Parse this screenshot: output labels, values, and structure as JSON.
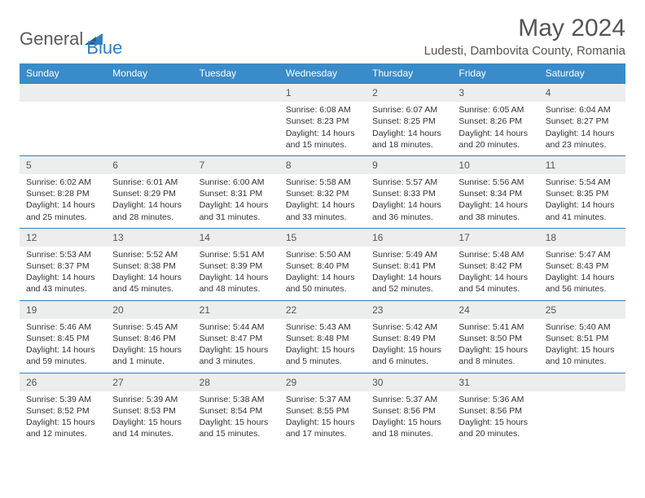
{
  "logo": {
    "word1": "General",
    "word2": "Blue"
  },
  "title": "May 2024",
  "location": "Ludesti, Dambovita County, Romania",
  "colors": {
    "header_bg": "#3a8bc9",
    "header_text": "#ffffff",
    "daynum_bg": "#eceded",
    "daynum_border": "#2f7fc2",
    "text": "#333333",
    "logo_gray": "#5a5a5a",
    "logo_blue": "#2f7fc2"
  },
  "day_headers": [
    "Sunday",
    "Monday",
    "Tuesday",
    "Wednesday",
    "Thursday",
    "Friday",
    "Saturday"
  ],
  "weeks": [
    [
      {
        "n": "",
        "sr": "",
        "ss": "",
        "dl": ""
      },
      {
        "n": "",
        "sr": "",
        "ss": "",
        "dl": ""
      },
      {
        "n": "",
        "sr": "",
        "ss": "",
        "dl": ""
      },
      {
        "n": "1",
        "sr": "Sunrise: 6:08 AM",
        "ss": "Sunset: 8:23 PM",
        "dl": "Daylight: 14 hours and 15 minutes."
      },
      {
        "n": "2",
        "sr": "Sunrise: 6:07 AM",
        "ss": "Sunset: 8:25 PM",
        "dl": "Daylight: 14 hours and 18 minutes."
      },
      {
        "n": "3",
        "sr": "Sunrise: 6:05 AM",
        "ss": "Sunset: 8:26 PM",
        "dl": "Daylight: 14 hours and 20 minutes."
      },
      {
        "n": "4",
        "sr": "Sunrise: 6:04 AM",
        "ss": "Sunset: 8:27 PM",
        "dl": "Daylight: 14 hours and 23 minutes."
      }
    ],
    [
      {
        "n": "5",
        "sr": "Sunrise: 6:02 AM",
        "ss": "Sunset: 8:28 PM",
        "dl": "Daylight: 14 hours and 25 minutes."
      },
      {
        "n": "6",
        "sr": "Sunrise: 6:01 AM",
        "ss": "Sunset: 8:29 PM",
        "dl": "Daylight: 14 hours and 28 minutes."
      },
      {
        "n": "7",
        "sr": "Sunrise: 6:00 AM",
        "ss": "Sunset: 8:31 PM",
        "dl": "Daylight: 14 hours and 31 minutes."
      },
      {
        "n": "8",
        "sr": "Sunrise: 5:58 AM",
        "ss": "Sunset: 8:32 PM",
        "dl": "Daylight: 14 hours and 33 minutes."
      },
      {
        "n": "9",
        "sr": "Sunrise: 5:57 AM",
        "ss": "Sunset: 8:33 PM",
        "dl": "Daylight: 14 hours and 36 minutes."
      },
      {
        "n": "10",
        "sr": "Sunrise: 5:56 AM",
        "ss": "Sunset: 8:34 PM",
        "dl": "Daylight: 14 hours and 38 minutes."
      },
      {
        "n": "11",
        "sr": "Sunrise: 5:54 AM",
        "ss": "Sunset: 8:35 PM",
        "dl": "Daylight: 14 hours and 41 minutes."
      }
    ],
    [
      {
        "n": "12",
        "sr": "Sunrise: 5:53 AM",
        "ss": "Sunset: 8:37 PM",
        "dl": "Daylight: 14 hours and 43 minutes."
      },
      {
        "n": "13",
        "sr": "Sunrise: 5:52 AM",
        "ss": "Sunset: 8:38 PM",
        "dl": "Daylight: 14 hours and 45 minutes."
      },
      {
        "n": "14",
        "sr": "Sunrise: 5:51 AM",
        "ss": "Sunset: 8:39 PM",
        "dl": "Daylight: 14 hours and 48 minutes."
      },
      {
        "n": "15",
        "sr": "Sunrise: 5:50 AM",
        "ss": "Sunset: 8:40 PM",
        "dl": "Daylight: 14 hours and 50 minutes."
      },
      {
        "n": "16",
        "sr": "Sunrise: 5:49 AM",
        "ss": "Sunset: 8:41 PM",
        "dl": "Daylight: 14 hours and 52 minutes."
      },
      {
        "n": "17",
        "sr": "Sunrise: 5:48 AM",
        "ss": "Sunset: 8:42 PM",
        "dl": "Daylight: 14 hours and 54 minutes."
      },
      {
        "n": "18",
        "sr": "Sunrise: 5:47 AM",
        "ss": "Sunset: 8:43 PM",
        "dl": "Daylight: 14 hours and 56 minutes."
      }
    ],
    [
      {
        "n": "19",
        "sr": "Sunrise: 5:46 AM",
        "ss": "Sunset: 8:45 PM",
        "dl": "Daylight: 14 hours and 59 minutes."
      },
      {
        "n": "20",
        "sr": "Sunrise: 5:45 AM",
        "ss": "Sunset: 8:46 PM",
        "dl": "Daylight: 15 hours and 1 minute."
      },
      {
        "n": "21",
        "sr": "Sunrise: 5:44 AM",
        "ss": "Sunset: 8:47 PM",
        "dl": "Daylight: 15 hours and 3 minutes."
      },
      {
        "n": "22",
        "sr": "Sunrise: 5:43 AM",
        "ss": "Sunset: 8:48 PM",
        "dl": "Daylight: 15 hours and 5 minutes."
      },
      {
        "n": "23",
        "sr": "Sunrise: 5:42 AM",
        "ss": "Sunset: 8:49 PM",
        "dl": "Daylight: 15 hours and 6 minutes."
      },
      {
        "n": "24",
        "sr": "Sunrise: 5:41 AM",
        "ss": "Sunset: 8:50 PM",
        "dl": "Daylight: 15 hours and 8 minutes."
      },
      {
        "n": "25",
        "sr": "Sunrise: 5:40 AM",
        "ss": "Sunset: 8:51 PM",
        "dl": "Daylight: 15 hours and 10 minutes."
      }
    ],
    [
      {
        "n": "26",
        "sr": "Sunrise: 5:39 AM",
        "ss": "Sunset: 8:52 PM",
        "dl": "Daylight: 15 hours and 12 minutes."
      },
      {
        "n": "27",
        "sr": "Sunrise: 5:39 AM",
        "ss": "Sunset: 8:53 PM",
        "dl": "Daylight: 15 hours and 14 minutes."
      },
      {
        "n": "28",
        "sr": "Sunrise: 5:38 AM",
        "ss": "Sunset: 8:54 PM",
        "dl": "Daylight: 15 hours and 15 minutes."
      },
      {
        "n": "29",
        "sr": "Sunrise: 5:37 AM",
        "ss": "Sunset: 8:55 PM",
        "dl": "Daylight: 15 hours and 17 minutes."
      },
      {
        "n": "30",
        "sr": "Sunrise: 5:37 AM",
        "ss": "Sunset: 8:56 PM",
        "dl": "Daylight: 15 hours and 18 minutes."
      },
      {
        "n": "31",
        "sr": "Sunrise: 5:36 AM",
        "ss": "Sunset: 8:56 PM",
        "dl": "Daylight: 15 hours and 20 minutes."
      },
      {
        "n": "",
        "sr": "",
        "ss": "",
        "dl": ""
      }
    ]
  ]
}
